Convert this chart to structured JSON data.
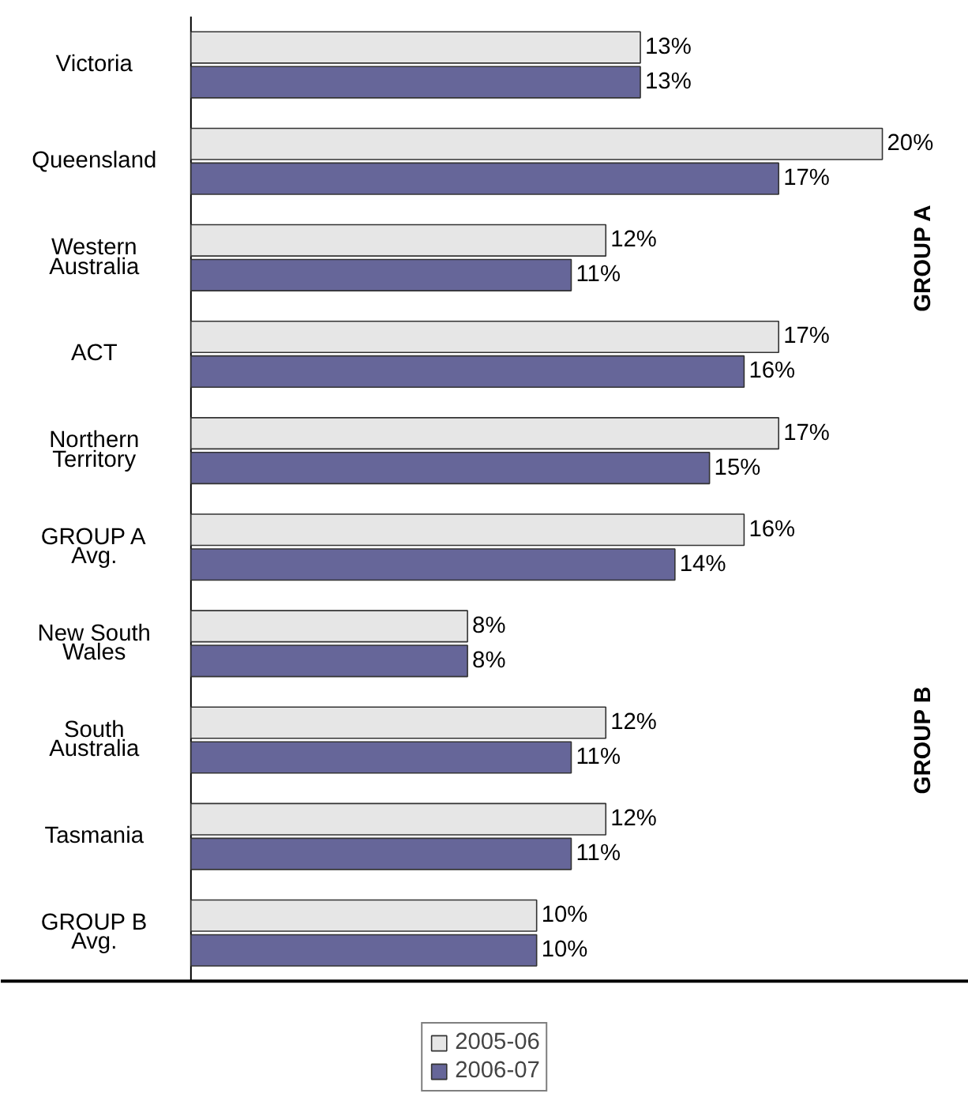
{
  "chart_data": {
    "type": "bar",
    "orientation": "horizontal",
    "categories": [
      "Victoria",
      "Queensland",
      "Western Australia",
      "ACT",
      "Northern Territory",
      "GROUP A Avg.",
      "New South Wales",
      "South Australia",
      "Tasmania",
      "GROUP B Avg."
    ],
    "series": [
      {
        "name": "2005-06",
        "color": "#e6e6e6",
        "values": [
          13,
          20,
          12,
          17,
          17,
          16,
          8,
          12,
          12,
          10
        ],
        "value_labels": [
          "13%",
          "20%",
          "12%",
          "17%",
          "17%",
          "16%",
          "8%",
          "12%",
          "12%",
          "10%"
        ]
      },
      {
        "name": "2006-07",
        "color": "#666699",
        "values": [
          13,
          17,
          11,
          16,
          15,
          14,
          8,
          11,
          11,
          10
        ],
        "value_labels": [
          "13%",
          "17%",
          "11%",
          "16%",
          "15%",
          "14%",
          "8%",
          "11%",
          "11%",
          "10%"
        ]
      }
    ],
    "annotations": [
      "GROUP A",
      "GROUP B"
    ],
    "grid": false,
    "legend": "bottom"
  }
}
